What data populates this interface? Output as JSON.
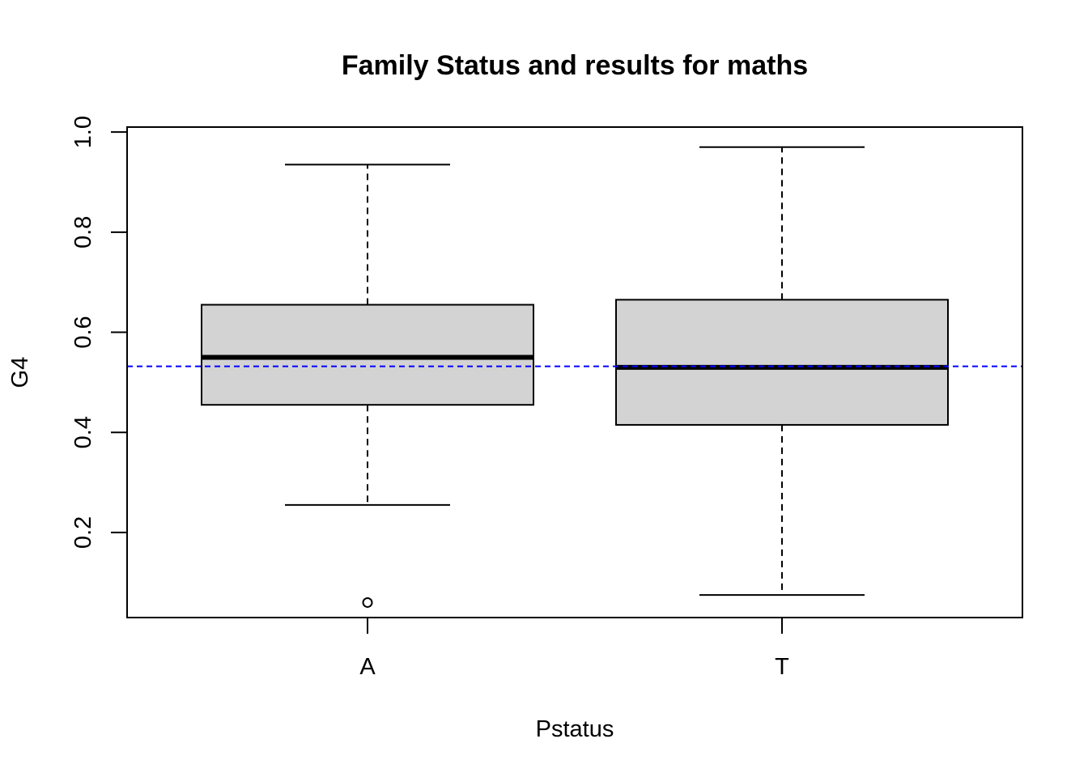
{
  "chart_data": {
    "type": "boxplot",
    "title": "Family Status and results for maths",
    "xlabel": "Pstatus",
    "ylabel": "G4",
    "categories": [
      "A",
      "T"
    ],
    "ylim": [
      0.03,
      1.01
    ],
    "yticks": [
      0.2,
      0.4,
      0.6,
      0.8,
      1.0
    ],
    "ytick_labels": [
      "0.2",
      "0.4",
      "0.6",
      "0.8",
      "1.0"
    ],
    "boxes": [
      {
        "category": "A",
        "whisker_low": 0.255,
        "q1": 0.455,
        "median": 0.55,
        "q3": 0.655,
        "whisker_high": 0.935,
        "outliers": [
          0.06
        ]
      },
      {
        "category": "T",
        "whisker_low": 0.075,
        "q1": 0.415,
        "median": 0.53,
        "q3": 0.665,
        "whisker_high": 0.97,
        "outliers": []
      }
    ],
    "reference_line": {
      "value": 0.532,
      "style": "dashed",
      "color": "#0000ff"
    },
    "box_fill": "#d3d3d3",
    "grid": false,
    "legend": "none"
  }
}
